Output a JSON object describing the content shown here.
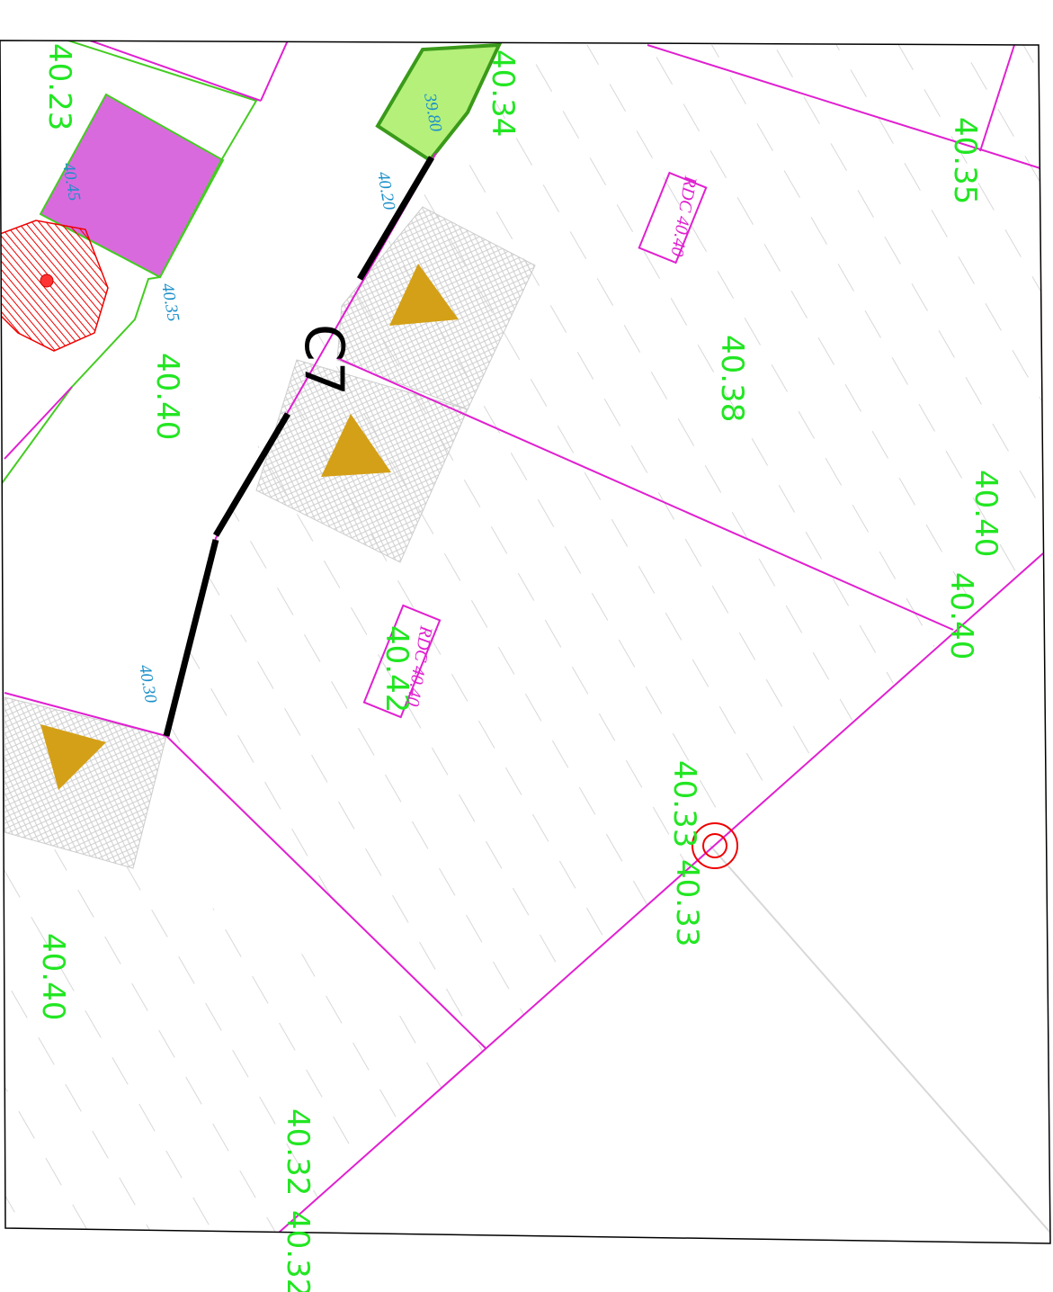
{
  "sheet_label": "C7",
  "elevations": [
    "40.23",
    "40.34",
    "40.35",
    "40.40",
    "40.38",
    "40.40",
    "40.40",
    "40.42",
    "40.33",
    "40.33",
    "40.40",
    "40.32",
    "40.32"
  ],
  "spot_labels": [
    "40.45",
    "40.35",
    "40.20",
    "40.30",
    "39.80"
  ],
  "room_labels": [
    "RDC 40.40",
    "RDC 40.40"
  ]
}
